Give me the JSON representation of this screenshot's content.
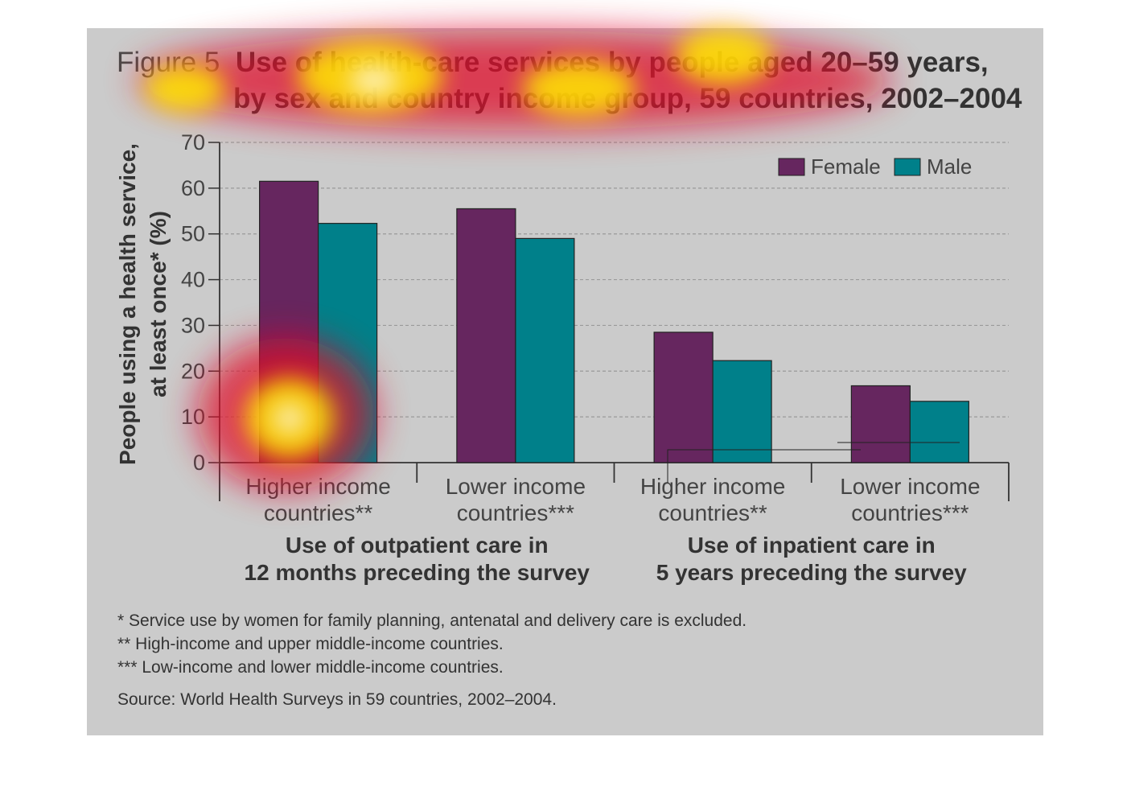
{
  "figure": {
    "label": "Figure 5",
    "title_line1": "Use of health-care services by people aged 20–59 years,",
    "title_line2": "by sex and country income group, 59 countries, 2002–2004"
  },
  "chart_data": {
    "type": "bar",
    "title": "Use of health-care services by people aged 20–59 years, by sex and country income group, 59 countries, 2002–2004",
    "ylabel_line1": "People using a health service,",
    "ylabel_line2": "at least once* (%)",
    "ylim": [
      0,
      70
    ],
    "yticks": [
      "0",
      "10",
      "20",
      "30",
      "40",
      "50",
      "60",
      "70"
    ],
    "grid": true,
    "legend_position": "top-right",
    "categories": [
      {
        "line1": "Higher income",
        "line2": "countries**"
      },
      {
        "line1": "Lower income",
        "line2": "countries***"
      },
      {
        "line1": "Higher income",
        "line2": "countries**"
      },
      {
        "line1": "Lower income",
        "line2": "countries***"
      }
    ],
    "groups": [
      {
        "line1": "Use of outpatient care in",
        "line2": "12 months preceding the survey"
      },
      {
        "line1": "Use of inpatient care in",
        "line2": "5 years preceding the survey"
      }
    ],
    "series": [
      {
        "name": "Female",
        "color": "#66265f",
        "values": [
          61.5,
          55.5,
          28.5,
          16.8
        ]
      },
      {
        "name": "Male",
        "color": "#00808a",
        "values": [
          52.3,
          49.0,
          22.3,
          13.4
        ]
      }
    ]
  },
  "notes": [
    "* Service use by women for family planning, antenatal and delivery care is excluded.",
    "** High-income and upper middle-income countries.",
    "*** Low-income and lower middle-income countries."
  ],
  "source": "Source: World Health Surveys in 59 countries, 2002–2004.",
  "colors": {
    "panel": "#cbcbcb",
    "female": "#66265f",
    "male": "#00808a",
    "grid": "#9a9a9a",
    "axis": "#333333"
  }
}
